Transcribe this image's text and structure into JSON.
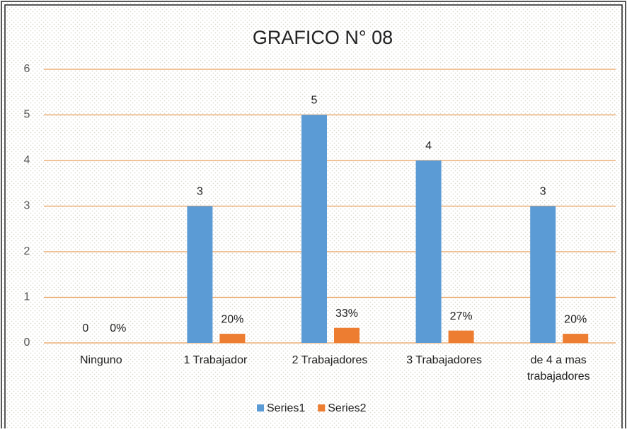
{
  "chart_data": {
    "type": "bar",
    "title": "GRAFICO N° 08",
    "categories": [
      "Ninguno",
      "1 Trabajador",
      "2 Trabajadores",
      "3 Trabajadores",
      "de 4 a mas trabajadores"
    ],
    "series": [
      {
        "name": "Series1",
        "color": "#5b9bd5",
        "values": [
          0,
          3,
          5,
          4,
          3
        ]
      },
      {
        "name": "Series2",
        "color": "#ed7d31",
        "values": [
          0,
          0.2,
          0.33,
          0.27,
          0.2
        ],
        "value_labels": [
          "0%",
          "20%",
          "33%",
          "27%",
          "20%"
        ]
      }
    ],
    "ylim": [
      0,
      6
    ],
    "yticks": [
      0,
      1,
      2,
      3,
      4,
      5,
      6
    ],
    "grid": true,
    "grid_color": "#e9a15c",
    "legend": "bottom"
  }
}
